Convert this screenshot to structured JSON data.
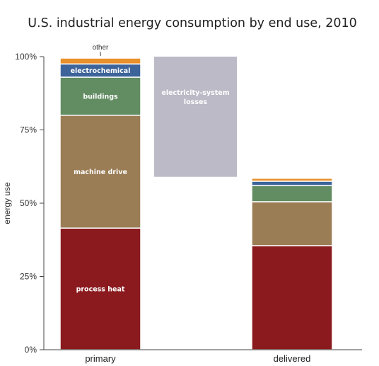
{
  "chart_data": {
    "type": "bar",
    "stacked": true,
    "title": "U.S. industrial energy consumption by end use, 2010",
    "xlabel": "",
    "ylabel": "energy use",
    "ylim": [
      0,
      100
    ],
    "y_ticks": [
      "0%",
      "25%",
      "50%",
      "75%",
      "100%"
    ],
    "categories": [
      "primary",
      "delivered"
    ],
    "series": [
      {
        "name": "process heat",
        "color": "#8a1a1e",
        "values": [
          41.5,
          35.5
        ]
      },
      {
        "name": "machine drive",
        "color": "#9a7c55",
        "values": [
          38.5,
          15.0
        ]
      },
      {
        "name": "buildings",
        "color": "#628c62",
        "values": [
          13.0,
          5.5
        ]
      },
      {
        "name": "electrochemical",
        "color": "#3d649a",
        "values": [
          4.5,
          1.5
        ]
      },
      {
        "name": "other",
        "color": "#e8902a",
        "values": [
          2.0,
          1.0
        ]
      }
    ],
    "losses": {
      "label": "electricity-system losses",
      "color": "#bcbac6",
      "from": 59.0,
      "to": 100.0
    },
    "annotations": {
      "other_label": "other"
    }
  }
}
